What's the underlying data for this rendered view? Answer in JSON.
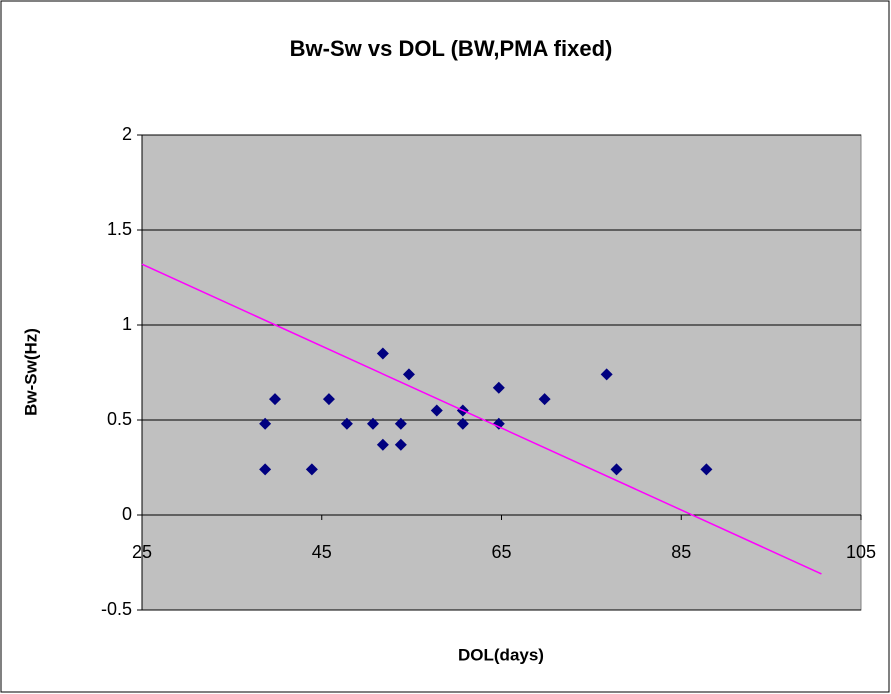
{
  "chart_data": {
    "type": "scatter",
    "title": "Bw-Sw vs DOL (BW,PMA fixed)",
    "x_label": "DOL(days)",
    "y_label": "Bw-Sw(Hz)",
    "xlim": [
      25,
      105
    ],
    "xticks": [
      25,
      45,
      65,
      85,
      105
    ],
    "ylim": [
      -0.5,
      2
    ],
    "yticks": [
      -0.5,
      0,
      0.5,
      1,
      1.5,
      2
    ],
    "grid": true,
    "background": "#c0c0c0",
    "series": [
      {
        "color": "#000080",
        "x": [
          38.7,
          38.7,
          39.8,
          43.9,
          45.8,
          47.8,
          50.7,
          51.8,
          51.8,
          53.8,
          53.8,
          54.7,
          57.8,
          60.7,
          60.7,
          64.7,
          64.7,
          69.8,
          76.7,
          77.8,
          87.8
        ],
        "values": [
          0.48,
          0.24,
          0.61,
          0.24,
          0.61,
          0.48,
          0.48,
          0.85,
          0.37,
          0.48,
          0.37,
          0.74,
          0.55,
          0.55,
          0.48,
          0.67,
          0.48,
          0.61,
          0.74,
          0.24,
          0.24
        ]
      }
    ],
    "trendline": {
      "color": "#ff00ff",
      "x": [
        25,
        100.6
      ],
      "values": [
        1.32,
        -0.31
      ]
    }
  }
}
